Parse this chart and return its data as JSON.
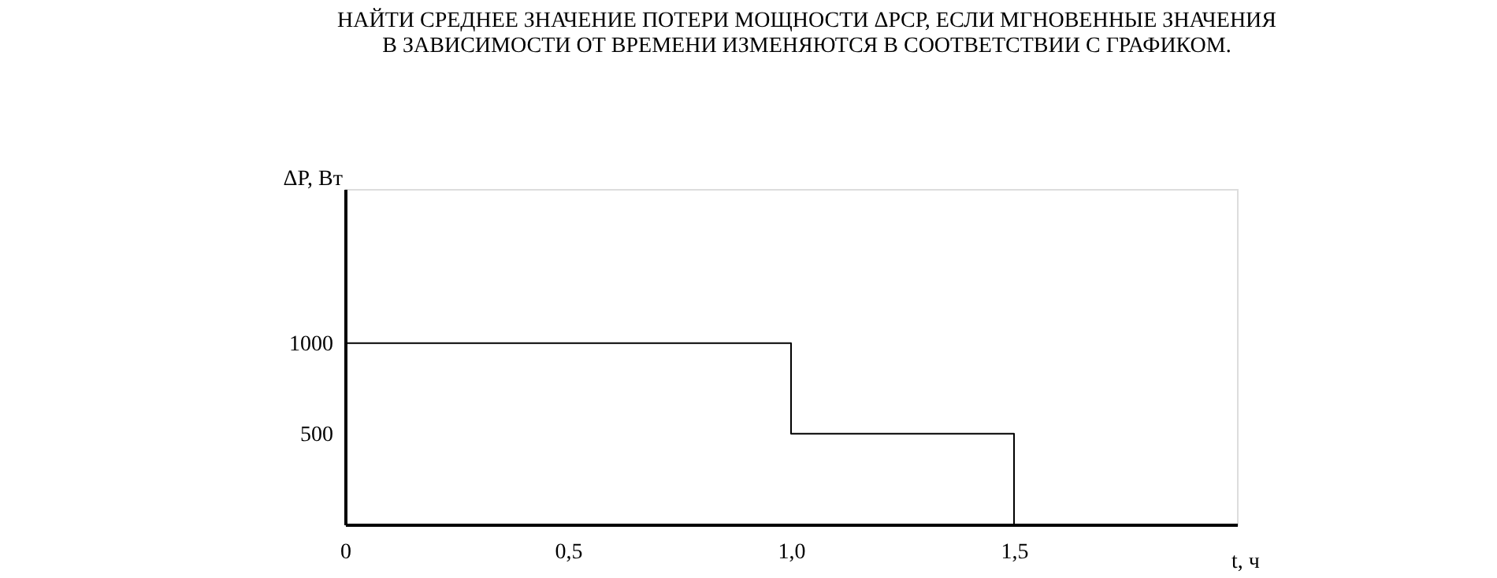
{
  "chart_data": {
    "type": "step",
    "title": "НАЙТИ СРЕДНЕЕ ЗНАЧЕНИЕ ПОТЕРИ МОЩНОСТИ ΔPСР, ЕСЛИ МГНОВЕННЫЕ ЗНАЧЕНИЯ\nВ ЗАВИСИМОСТИ ОТ ВРЕМЕНИ ИЗМЕНЯЮТСЯ В СООТВЕТСТВИИ С ГРАФИКОМ.",
    "xlabel": "t, ч",
    "ylabel": "ΔP, Вт",
    "x": [
      0,
      1.0,
      1.5
    ],
    "series": [
      {
        "color": "#000000",
        "values": [
          1000,
          500,
          0
        ]
      }
    ],
    "xlim": [
      0,
      2.0
    ],
    "xticks": [
      0,
      {
        "value": 0.5,
        "label": "0,5"
      },
      {
        "value": 1.0,
        "label": "1,0"
      },
      {
        "value": 1.5,
        "label": "1,5"
      }
    ],
    "ylim": [
      0,
      1850
    ],
    "yticks": [
      500,
      1000
    ],
    "grid": false,
    "line_style": "solid",
    "marker": "none"
  }
}
